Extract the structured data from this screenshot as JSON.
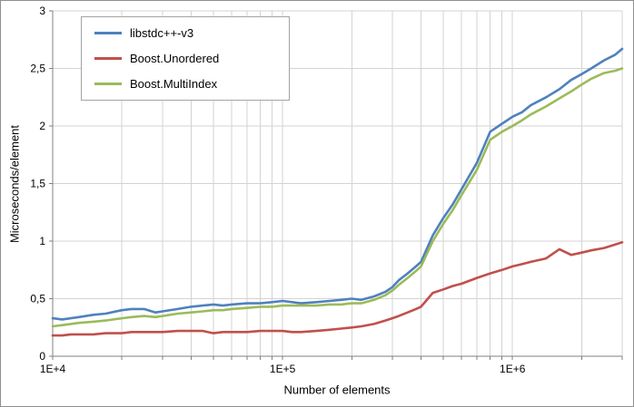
{
  "chart_data": {
    "type": "line",
    "title": "",
    "xlabel": "Number of elements",
    "ylabel": "Microseconds/element",
    "x_scale": "log",
    "xlim": [
      10000,
      3000000
    ],
    "ylim": [
      0,
      3
    ],
    "grid": true,
    "legend_position": "top-left",
    "y_ticks": [
      0,
      0.5,
      1,
      1.5,
      2,
      2.5,
      3
    ],
    "y_tick_labels": [
      "0",
      "0,5",
      "1",
      "1,5",
      "2",
      "2,5",
      "3"
    ],
    "x_tick_labels": [
      {
        "value": 10000,
        "label": "1E+4"
      },
      {
        "value": 100000,
        "label": "1E+5"
      },
      {
        "value": 1000000,
        "label": "1E+6"
      }
    ],
    "colors": {
      "axis": "#808080",
      "grid": "#d3d3d3",
      "text": "#000000"
    },
    "x": [
      10000,
      11000,
      12000,
      13000,
      15000,
      17000,
      20000,
      22000,
      25000,
      28000,
      30000,
      35000,
      40000,
      45000,
      50000,
      55000,
      60000,
      70000,
      80000,
      90000,
      100000,
      110000,
      120000,
      140000,
      160000,
      180000,
      200000,
      220000,
      250000,
      280000,
      300000,
      320000,
      350000,
      380000,
      400000,
      450000,
      500000,
      550000,
      600000,
      700000,
      800000,
      900000,
      1000000,
      1100000,
      1200000,
      1400000,
      1600000,
      1800000,
      2000000,
      2200000,
      2500000,
      2800000,
      3000000
    ],
    "series": [
      {
        "name": "libstdc++-v3",
        "color": "#4f81bd",
        "values": [
          0.33,
          0.32,
          0.33,
          0.34,
          0.36,
          0.37,
          0.4,
          0.41,
          0.41,
          0.38,
          0.39,
          0.41,
          0.43,
          0.44,
          0.45,
          0.44,
          0.45,
          0.46,
          0.46,
          0.47,
          0.48,
          0.47,
          0.46,
          0.47,
          0.48,
          0.49,
          0.5,
          0.49,
          0.52,
          0.56,
          0.6,
          0.66,
          0.72,
          0.78,
          0.82,
          1.05,
          1.2,
          1.32,
          1.45,
          1.68,
          1.95,
          2.02,
          2.08,
          2.12,
          2.18,
          2.25,
          2.32,
          2.4,
          2.45,
          2.5,
          2.57,
          2.62,
          2.67
        ]
      },
      {
        "name": "Boost.Unordered",
        "color": "#c0504d",
        "values": [
          0.18,
          0.18,
          0.19,
          0.19,
          0.19,
          0.2,
          0.2,
          0.21,
          0.21,
          0.21,
          0.21,
          0.22,
          0.22,
          0.22,
          0.2,
          0.21,
          0.21,
          0.21,
          0.22,
          0.22,
          0.22,
          0.21,
          0.21,
          0.22,
          0.23,
          0.24,
          0.25,
          0.26,
          0.28,
          0.31,
          0.33,
          0.35,
          0.38,
          0.41,
          0.43,
          0.55,
          0.58,
          0.61,
          0.63,
          0.68,
          0.72,
          0.75,
          0.78,
          0.8,
          0.82,
          0.85,
          0.93,
          0.88,
          0.9,
          0.92,
          0.94,
          0.97,
          0.99
        ]
      },
      {
        "name": "Boost.MultiIndex",
        "color": "#9bbb59",
        "values": [
          0.26,
          0.27,
          0.28,
          0.29,
          0.3,
          0.31,
          0.33,
          0.34,
          0.35,
          0.34,
          0.35,
          0.37,
          0.38,
          0.39,
          0.4,
          0.4,
          0.41,
          0.42,
          0.43,
          0.43,
          0.44,
          0.44,
          0.44,
          0.44,
          0.45,
          0.45,
          0.46,
          0.46,
          0.49,
          0.53,
          0.57,
          0.62,
          0.68,
          0.74,
          0.78,
          1.0,
          1.15,
          1.27,
          1.4,
          1.62,
          1.88,
          1.95,
          2.0,
          2.05,
          2.1,
          2.17,
          2.24,
          2.3,
          2.36,
          2.41,
          2.46,
          2.48,
          2.5
        ]
      }
    ]
  }
}
